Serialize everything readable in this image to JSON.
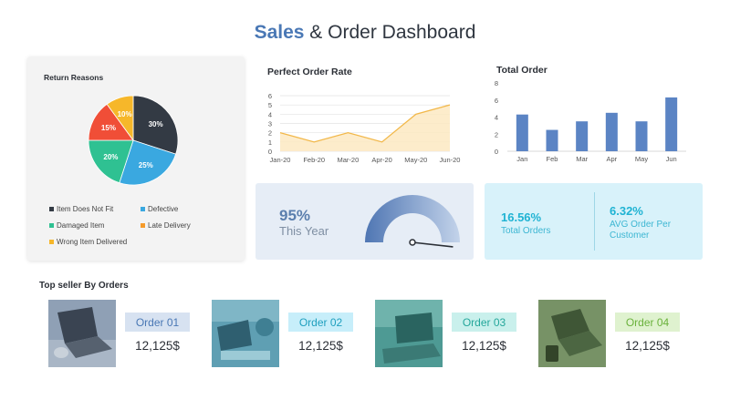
{
  "header": {
    "title_accent": "Sales",
    "title_rest": " & Order Dashboard"
  },
  "return_reasons": {
    "title": "Return Reasons",
    "legend": [
      {
        "label": "Item Does Not Fit",
        "color": "#333a44"
      },
      {
        "label": "Defective",
        "color": "#3aa8e0"
      },
      {
        "label": "Damaged Item",
        "color": "#2fc192"
      },
      {
        "label": "Late Delivery",
        "color": "#f59b2b"
      },
      {
        "label": "Wrong Item Delivered",
        "color": "#f6b72a"
      }
    ]
  },
  "perfect_order_rate": {
    "title": "Perfect Order Rate"
  },
  "total_order": {
    "title": "Total Order"
  },
  "chart_data": [
    {
      "type": "pie",
      "title": "Return Reasons",
      "categories": [
        "Item Does Not Fit",
        "Defective",
        "Damaged Item",
        "Late Delivery",
        "Wrong Item Delivered"
      ],
      "values": [
        30,
        25,
        20,
        15,
        10
      ],
      "labels": [
        "30%",
        "25%",
        "20%",
        "15%",
        "10%"
      ],
      "colors": [
        "#333a44",
        "#3aa8e0",
        "#2fc192",
        "#f04e37",
        "#f6b72a"
      ],
      "legend": "bottom"
    },
    {
      "type": "area",
      "title": "Perfect Order Rate",
      "categories": [
        "Jan-20",
        "Feb-20",
        "Mar-20",
        "Apr-20",
        "May-20",
        "Jun-20"
      ],
      "values": [
        2,
        1,
        2,
        1,
        4,
        5
      ],
      "ylim": [
        0,
        6
      ],
      "yticks": [
        "0",
        "1",
        "2",
        "3",
        "4",
        "5",
        "6"
      ],
      "grid": true,
      "color": "#f2b84a"
    },
    {
      "type": "bar",
      "title": "Total Order",
      "categories": [
        "Jan",
        "Feb",
        "Mar",
        "Apr",
        "May",
        "Jun"
      ],
      "values": [
        4.3,
        2.5,
        3.5,
        4.5,
        3.5,
        6.3
      ],
      "ylim": [
        0,
        8
      ],
      "yticks": [
        "0",
        "2",
        "4",
        "6",
        "8"
      ],
      "grid": false,
      "color": "#5b84c4"
    }
  ],
  "this_year": {
    "value": "95%",
    "label": "This Year",
    "gauge_fraction": 0.95
  },
  "kpis": [
    {
      "value": "16.56%",
      "label": "Total Orders"
    },
    {
      "value": "6.32%",
      "label": "AVG Order Per Customer"
    }
  ],
  "top_sellers": {
    "title": "Top seller By Orders",
    "items": [
      {
        "label": "Order 01",
        "price": "12,125$",
        "tag_bg": "#d7e2f1",
        "tag_fg": "#4a78b5",
        "tint": "#8fa0b5"
      },
      {
        "label": "Order 02",
        "price": "12,125$",
        "tag_bg": "#c7eefa",
        "tag_fg": "#1f9fbe",
        "tint": "#5f9fb3"
      },
      {
        "label": "Order 03",
        "price": "12,125$",
        "tag_bg": "#c9f0ec",
        "tag_fg": "#25a79b",
        "tint": "#4e9a94"
      },
      {
        "label": "Order 04",
        "price": "12,125$",
        "tag_bg": "#dff2cf",
        "tag_fg": "#6ab23c",
        "tint": "#6e8a5e"
      }
    ]
  }
}
